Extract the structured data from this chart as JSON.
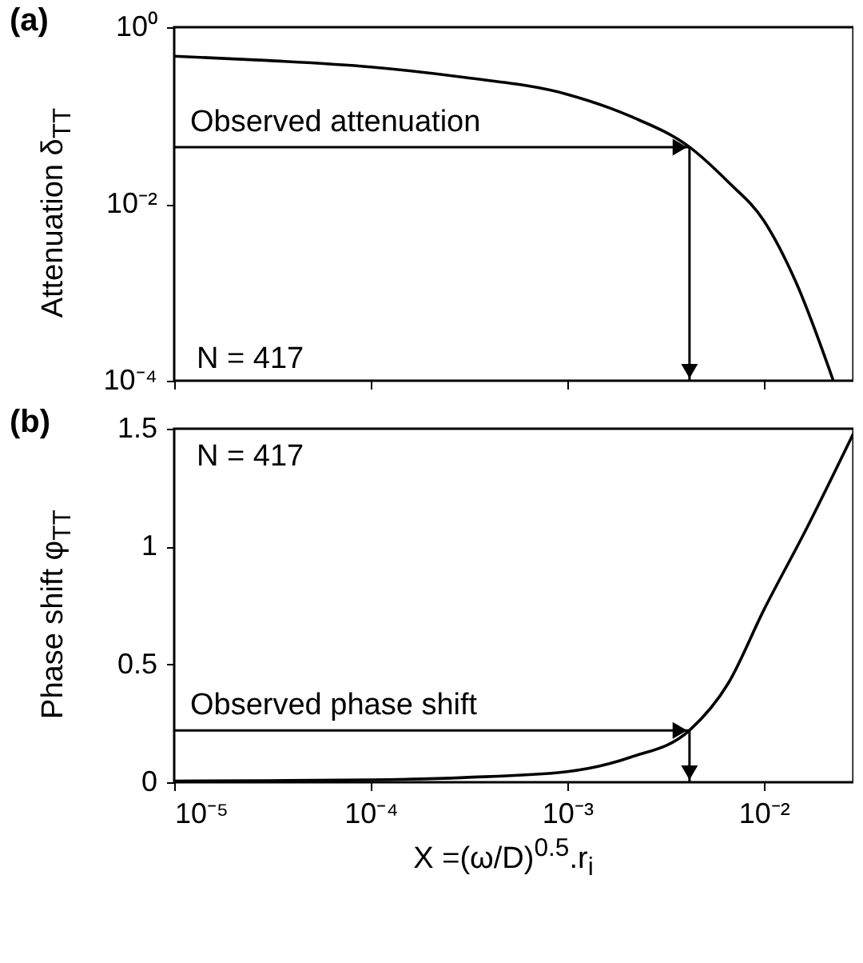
{
  "chart_data": [
    {
      "type": "line",
      "title": "(a)",
      "ylabel": "Attenuation δ$_{TT}$",
      "log": "xy",
      "tick_labels": "y",
      "grid": false,
      "x": [
        1e-05,
        3e-05,
        0.0001,
        0.0003,
        0.001,
        0.0021,
        0.00419,
        0.0066,
        0.01,
        0.0146,
        0.0226
      ],
      "series": [
        {
          "color": "#000000",
          "values": [
            0.47,
            0.42,
            0.355,
            0.27,
            0.174,
            0.098,
            0.044,
            0.0177,
            0.0065,
            0.0013,
            0.0001
          ]
        }
      ],
      "xlim": [
        1e-05,
        0.0286
      ],
      "xticks": [
        {
          "value": 1e-05,
          "label": null
        },
        {
          "value": 0.0001,
          "label": null
        },
        {
          "value": 0.001,
          "label": null
        },
        {
          "value": 0.01,
          "label": null
        }
      ],
      "ylim": [
        0.0001,
        1
      ],
      "yticks": [
        {
          "value": 0.0001,
          "label": "10⁻⁴"
        },
        {
          "value": 0.01,
          "label": "10⁻²"
        },
        {
          "value": 1,
          "label": "10⁰"
        }
      ],
      "annotations": [
        {
          "text": "Observed attenuation",
          "x": 0.00419,
          "y": 0.044
        },
        "N = 417"
      ]
    },
    {
      "type": "line",
      "title": "(b)",
      "ylabel": "Phase shift φ$_{TT}$",
      "xlabel": "X =(ω/D)$^{0.5}$.r$_{i}$",
      "log": "x",
      "grid": false,
      "x": [
        1e-05,
        3e-05,
        0.0001,
        0.0003,
        0.001,
        0.0021,
        0.00419,
        0.0066,
        0.01,
        0.0166,
        0.0286
      ],
      "series": [
        {
          "color": "#000000",
          "values": [
            0.005,
            0.007,
            0.01,
            0.02,
            0.045,
            0.106,
            0.22,
            0.42,
            0.73,
            1.08,
            1.48
          ]
        }
      ],
      "xlim": [
        1e-05,
        0.0286
      ],
      "xticks": [
        {
          "value": 1e-05,
          "label": "10⁻⁵"
        },
        {
          "value": 0.0001,
          "label": "10⁻⁴"
        },
        {
          "value": 0.001,
          "label": "10⁻³"
        },
        {
          "value": 0.01,
          "label": "10⁻²"
        }
      ],
      "ylim": [
        0,
        1.5
      ],
      "yticks": [
        0,
        0.5,
        1,
        1.5
      ],
      "annotations": [
        {
          "text": "Observed phase shift",
          "x": 0.00419,
          "y": 0.22
        },
        "N = 417"
      ]
    }
  ]
}
